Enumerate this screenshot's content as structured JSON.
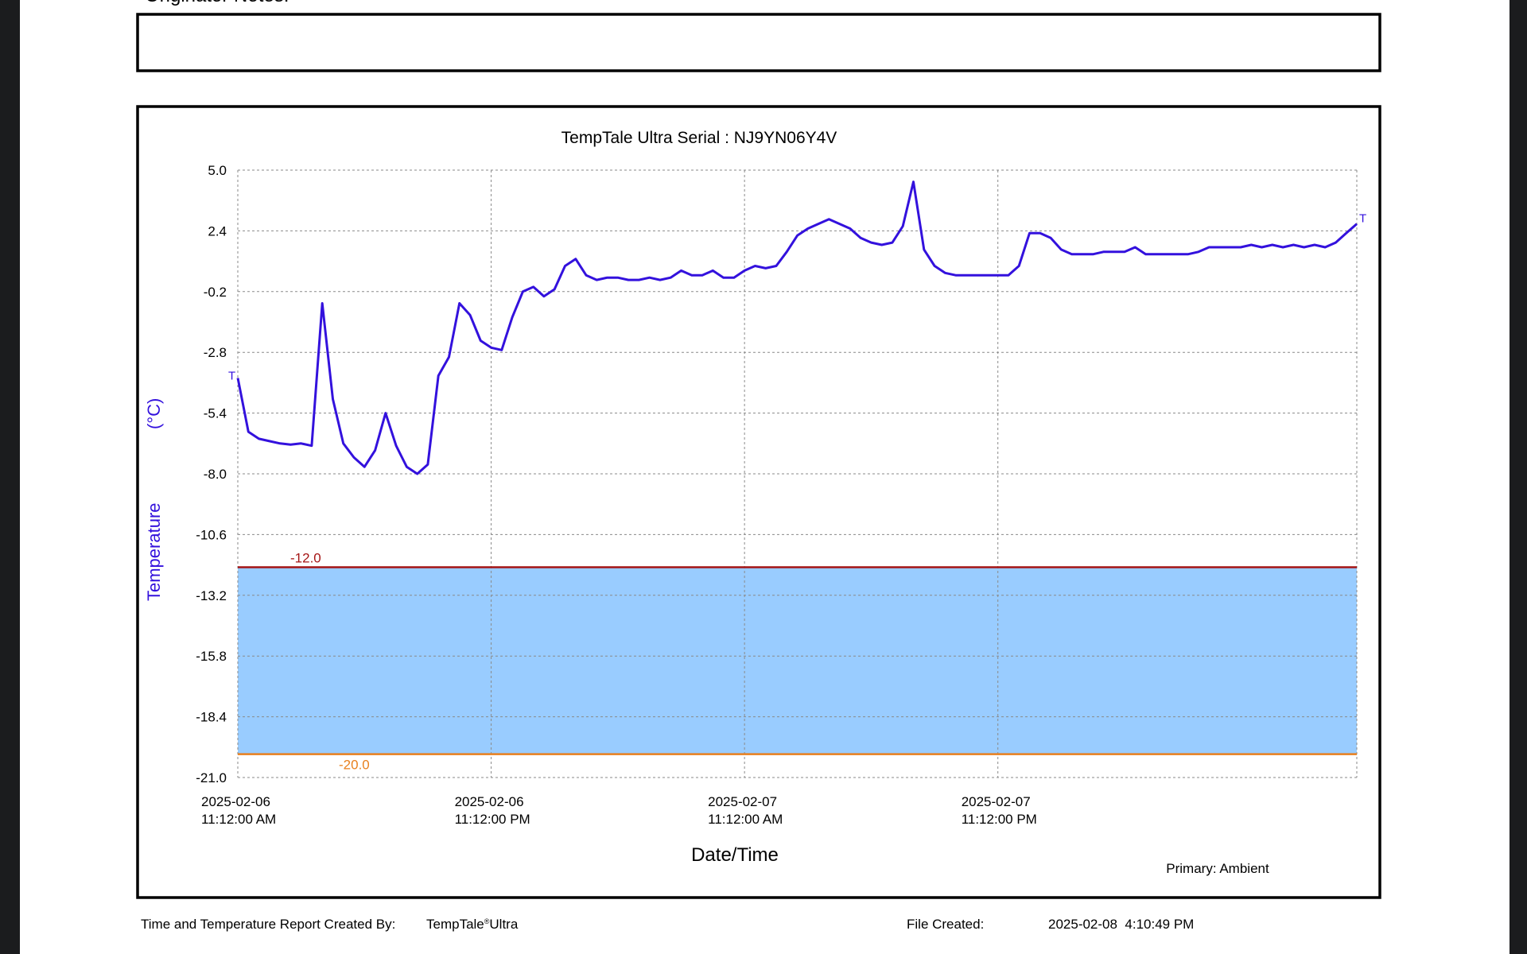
{
  "document": {
    "notes_label": "Originator Notes:",
    "footer": {
      "created_by_label": "Time and Temperature Report Created By:",
      "created_by": "TempTale",
      "created_by_mark": "®",
      "created_by_suffix": "Ultra",
      "file_created_label": "File Created:",
      "file_created": "2025-02-08  4:10:49 PM"
    }
  },
  "chart_data": {
    "type": "line",
    "title": "TempTale Ultra  Serial : NJ9YN06Y4V",
    "ylabel": "Temperature",
    "yunit": "(°C)",
    "xlabel": "Date/Time",
    "annotation": "Primary: Ambient",
    "start_marker": "T",
    "end_marker": "T",
    "color": "#3311dd",
    "grid": true,
    "ylim": [
      -21,
      5
    ],
    "yticks": [
      {
        "value": 5,
        "label": "5.0"
      },
      2.4,
      -0.2,
      -2.8,
      -5.4,
      {
        "value": -8,
        "label": "-8.0"
      },
      -10.6,
      -13.2,
      -15.8,
      -18.4,
      {
        "value": -21,
        "label": "-21.0"
      }
    ],
    "xlim": [
      "2025-02-06 11:12",
      "2025-02-08 16:12"
    ],
    "xticks": [
      {
        "value": "2025-02-06 11:12",
        "label": "2025-02-06 11:12:00 AM"
      },
      {
        "value": "2025-02-06 23:12",
        "label": "2025-02-06 11:12:00 PM"
      },
      {
        "value": "2025-02-07 11:12",
        "label": "2025-02-07 11:12:00 AM"
      },
      {
        "value": "2025-02-07 23:12",
        "label": "2025-02-07 11:12:00 PM"
      }
    ],
    "limits": [
      {
        "value": -12,
        "label": "-12.0",
        "color": "#a51515"
      },
      {
        "value": -20,
        "label": "-20.0",
        "color": "#e8801e"
      }
    ],
    "band_color": "#99ccff",
    "x": [
      "2025-02-06 11:12",
      "2025-02-06 11:42",
      "2025-02-06 12:12",
      "2025-02-06 12:42",
      "2025-02-06 13:12",
      "2025-02-06 13:42",
      "2025-02-06 14:12",
      "2025-02-06 14:42",
      "2025-02-06 15:12",
      "2025-02-06 15:42",
      "2025-02-06 16:12",
      "2025-02-06 16:42",
      "2025-02-06 17:12",
      "2025-02-06 17:42",
      "2025-02-06 18:12",
      "2025-02-06 18:42",
      "2025-02-06 19:12",
      "2025-02-06 19:42",
      "2025-02-06 20:12",
      "2025-02-06 20:42",
      "2025-02-06 21:12",
      "2025-02-06 21:42",
      "2025-02-06 22:12",
      "2025-02-06 22:42",
      "2025-02-06 23:12",
      "2025-02-06 23:42",
      "2025-02-07 00:12",
      "2025-02-07 00:42",
      "2025-02-07 01:12",
      "2025-02-07 01:42",
      "2025-02-07 02:12",
      "2025-02-07 02:42",
      "2025-02-07 03:12",
      "2025-02-07 03:42",
      "2025-02-07 04:12",
      "2025-02-07 04:42",
      "2025-02-07 05:12",
      "2025-02-07 05:42",
      "2025-02-07 06:12",
      "2025-02-07 06:42",
      "2025-02-07 07:12",
      "2025-02-07 07:42",
      "2025-02-07 08:12",
      "2025-02-07 08:42",
      "2025-02-07 09:12",
      "2025-02-07 09:42",
      "2025-02-07 10:12",
      "2025-02-07 10:42",
      "2025-02-07 11:12",
      "2025-02-07 11:42",
      "2025-02-07 12:12",
      "2025-02-07 12:42",
      "2025-02-07 13:12",
      "2025-02-07 13:42",
      "2025-02-07 14:12",
      "2025-02-07 14:42",
      "2025-02-07 15:12",
      "2025-02-07 15:42",
      "2025-02-07 16:12",
      "2025-02-07 16:42",
      "2025-02-07 17:12",
      "2025-02-07 17:42",
      "2025-02-07 18:12",
      "2025-02-07 18:42",
      "2025-02-07 19:12",
      "2025-02-07 19:42",
      "2025-02-07 20:12",
      "2025-02-07 20:42",
      "2025-02-07 21:12",
      "2025-02-07 21:42",
      "2025-02-07 22:12",
      "2025-02-07 22:42",
      "2025-02-07 23:12",
      "2025-02-07 23:42",
      "2025-02-08 00:12",
      "2025-02-08 00:42",
      "2025-02-08 01:12",
      "2025-02-08 01:42",
      "2025-02-08 02:12",
      "2025-02-08 02:42",
      "2025-02-08 03:12",
      "2025-02-08 03:42",
      "2025-02-08 04:12",
      "2025-02-08 04:42",
      "2025-02-08 05:12",
      "2025-02-08 05:42",
      "2025-02-08 06:12",
      "2025-02-08 06:42",
      "2025-02-08 07:12",
      "2025-02-08 07:42",
      "2025-02-08 08:12",
      "2025-02-08 08:42",
      "2025-02-08 09:12",
      "2025-02-08 09:42",
      "2025-02-08 10:12",
      "2025-02-08 10:42",
      "2025-02-08 11:12",
      "2025-02-08 11:42",
      "2025-02-08 12:12",
      "2025-02-08 12:42",
      "2025-02-08 13:12",
      "2025-02-08 13:42",
      "2025-02-08 14:12",
      "2025-02-08 14:42",
      "2025-02-08 15:12",
      "2025-02-08 15:42",
      "2025-02-08 16:12"
    ],
    "values": [
      -3.9,
      -6.2,
      -6.5,
      -6.6,
      -6.7,
      -6.75,
      -6.7,
      -6.8,
      -0.7,
      -4.8,
      -6.7,
      -7.3,
      -7.7,
      -7.0,
      -5.4,
      -6.8,
      -7.7,
      -8.0,
      -7.6,
      -3.8,
      -3.0,
      -0.7,
      -1.2,
      -2.3,
      -2.6,
      -2.7,
      -1.3,
      -0.2,
      0.0,
      -0.4,
      -0.1,
      0.9,
      1.2,
      0.5,
      0.3,
      0.4,
      0.4,
      0.3,
      0.3,
      0.4,
      0.3,
      0.4,
      0.7,
      0.5,
      0.5,
      0.7,
      0.4,
      0.4,
      0.7,
      0.9,
      0.8,
      0.9,
      1.5,
      2.2,
      2.5,
      2.7,
      2.9,
      2.7,
      2.5,
      2.1,
      1.9,
      1.8,
      1.9,
      2.6,
      4.5,
      1.6,
      0.9,
      0.6,
      0.5,
      0.5,
      0.5,
      0.5,
      0.5,
      0.5,
      0.9,
      2.3,
      2.3,
      2.1,
      1.6,
      1.4,
      1.4,
      1.4,
      1.5,
      1.5,
      1.5,
      1.7,
      1.4,
      1.4,
      1.4,
      1.4,
      1.4,
      1.5,
      1.7,
      1.7,
      1.7,
      1.7,
      1.8,
      1.7,
      1.8,
      1.7,
      1.8,
      1.7,
      1.8,
      1.7,
      1.9,
      2.3,
      2.7
    ]
  }
}
